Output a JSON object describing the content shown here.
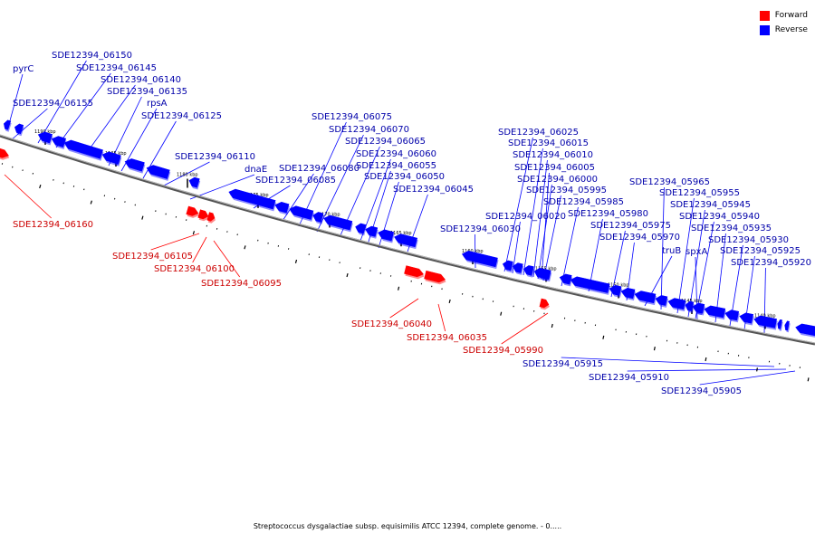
{
  "legend": {
    "forward": {
      "label": "Forward",
      "color": "#ff0000"
    },
    "reverse": {
      "label": "Reverse",
      "color": "#0000ff"
    }
  },
  "caption": "Streptococcus dysgalactiae subsp. equisimilis ATCC 12394, complete genome. - 0.....",
  "scale": {
    "label_unit": "kbp",
    "labels": [
      "1190 kbp",
      "1185 kbp",
      "1180 kbp",
      "1175 kbp",
      "1170 kbp",
      "1165 kbp",
      "1160 kbp",
      "1155 kbp",
      "1150 kbp",
      "1145 kbp",
      "1140 kbp"
    ]
  },
  "genes": [
    {
      "label": "pyrC",
      "strand": "reverse"
    },
    {
      "label": "SDE12394_06160",
      "strand": "forward"
    },
    {
      "label": "SDE12394_06155",
      "strand": "reverse"
    },
    {
      "label": "SDE12394_06150",
      "strand": "reverse"
    },
    {
      "label": "SDE12394_06145",
      "strand": "reverse"
    },
    {
      "label": "SDE12394_06140",
      "strand": "reverse"
    },
    {
      "label": "SDE12394_06135",
      "strand": "reverse"
    },
    {
      "label": "rpsA",
      "strand": "reverse"
    },
    {
      "label": "SDE12394_06125",
      "strand": "reverse"
    },
    {
      "label": "SDE12394_06110",
      "strand": "reverse"
    },
    {
      "label": "SDE12394_06105",
      "strand": "forward"
    },
    {
      "label": "SDE12394_06100",
      "strand": "forward"
    },
    {
      "label": "SDE12394_06095",
      "strand": "forward"
    },
    {
      "label": "dnaE",
      "strand": "reverse"
    },
    {
      "label": "SDE12394_06085",
      "strand": "reverse"
    },
    {
      "label": "SDE12394_06080",
      "strand": "reverse"
    },
    {
      "label": "SDE12394_06075",
      "strand": "reverse"
    },
    {
      "label": "SDE12394_06070",
      "strand": "reverse"
    },
    {
      "label": "SDE12394_06065",
      "strand": "reverse"
    },
    {
      "label": "SDE12394_06060",
      "strand": "reverse"
    },
    {
      "label": "SDE12394_06055",
      "strand": "reverse"
    },
    {
      "label": "SDE12394_06050",
      "strand": "reverse"
    },
    {
      "label": "SDE12394_06045",
      "strand": "reverse"
    },
    {
      "label": "SDE12394_06040",
      "strand": "forward"
    },
    {
      "label": "SDE12394_06035",
      "strand": "forward"
    },
    {
      "label": "SDE12394_06030",
      "strand": "reverse"
    },
    {
      "label": "SDE12394_06025",
      "strand": "reverse"
    },
    {
      "label": "SDE12394_06020",
      "strand": "reverse"
    },
    {
      "label": "SDE12394_06015",
      "strand": "reverse"
    },
    {
      "label": "SDE12394_06010",
      "strand": "reverse"
    },
    {
      "label": "SDE12394_06005",
      "strand": "reverse"
    },
    {
      "label": "SDE12394_06000",
      "strand": "reverse"
    },
    {
      "label": "SDE12394_05995",
      "strand": "reverse"
    },
    {
      "label": "SDE12394_05990",
      "strand": "forward"
    },
    {
      "label": "SDE12394_05985",
      "strand": "reverse"
    },
    {
      "label": "SDE12394_05980",
      "strand": "reverse"
    },
    {
      "label": "SDE12394_05975",
      "strand": "reverse"
    },
    {
      "label": "SDE12394_05970",
      "strand": "reverse"
    },
    {
      "label": "truB",
      "strand": "reverse"
    },
    {
      "label": "SDE12394_05965",
      "strand": "reverse"
    },
    {
      "label": "SDE12394_05955",
      "strand": "reverse"
    },
    {
      "label": "SDE12394_05945",
      "strand": "reverse"
    },
    {
      "label": "SDE12394_05940",
      "strand": "reverse"
    },
    {
      "label": "spxA",
      "strand": "reverse"
    },
    {
      "label": "SDE12394_05935",
      "strand": "reverse"
    },
    {
      "label": "SDE12394_05930",
      "strand": "reverse"
    },
    {
      "label": "SDE12394_05925",
      "strand": "reverse"
    },
    {
      "label": "SDE12394_05920",
      "strand": "reverse"
    },
    {
      "label": "SDE12394_05915",
      "strand": "reverse"
    },
    {
      "label": "SDE12394_05910",
      "strand": "reverse"
    },
    {
      "label": "SDE12394_05905",
      "strand": "reverse"
    }
  ]
}
